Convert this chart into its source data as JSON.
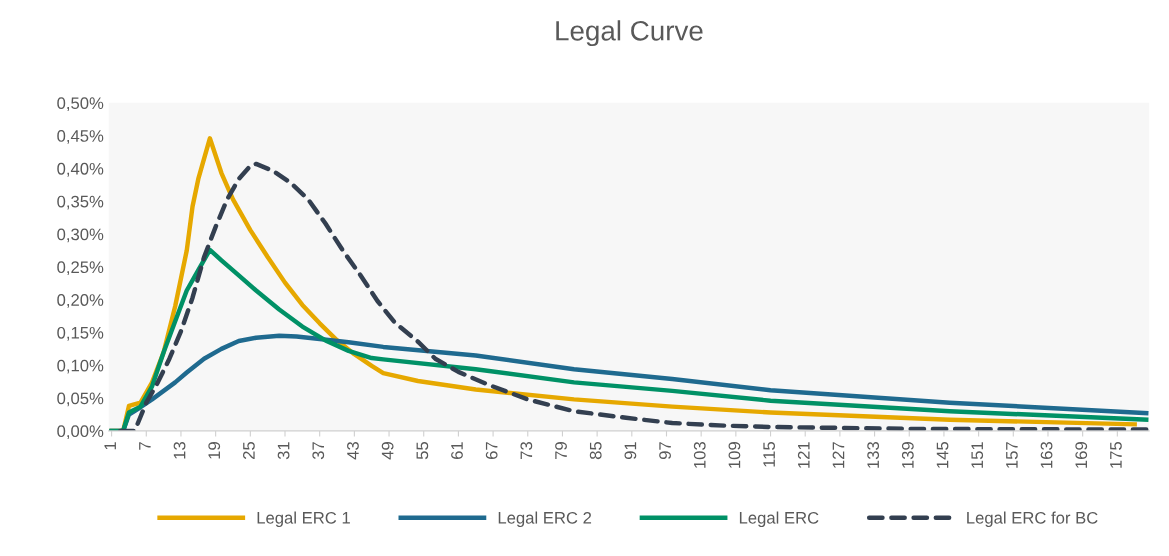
{
  "chart_data": {
    "type": "line",
    "title": "Legal Curve",
    "xlim": [
      0.5,
      180.5
    ],
    "xticks": [
      1,
      7,
      13,
      19,
      25,
      31,
      37,
      43,
      49,
      55,
      61,
      67,
      73,
      79,
      85,
      91,
      97,
      103,
      109,
      115,
      121,
      127,
      133,
      139,
      145,
      151,
      157,
      163,
      169,
      175
    ],
    "ylim": [
      0,
      0.5
    ],
    "yticks": [
      {
        "value": 0,
        "label": "0,00%"
      },
      {
        "value": 0.05,
        "label": "0,05%"
      },
      {
        "value": 0.1,
        "label": "0,10%"
      },
      {
        "value": 0.15,
        "label": "0,15%"
      },
      {
        "value": 0.2,
        "label": "0,20%"
      },
      {
        "value": 0.25,
        "label": "0,25%"
      },
      {
        "value": 0.3,
        "label": "0,30%"
      },
      {
        "value": 0.35,
        "label": "0,35%"
      },
      {
        "value": 0.4,
        "label": "0,40%"
      },
      {
        "value": 0.45,
        "label": "0,45%"
      },
      {
        "value": 0.5,
        "label": "0,50%"
      }
    ],
    "grid": false,
    "legend": "bottom",
    "marker": "none",
    "series": [
      {
        "name": "Legal ERC 1",
        "color": "#e6a800",
        "line_style": "solid",
        "x": [
          1,
          2,
          3,
          4,
          6,
          8,
          10,
          12,
          14,
          15,
          16,
          18,
          20,
          22,
          25,
          28,
          31,
          34,
          37,
          40,
          43,
          46,
          48,
          54,
          64,
          81,
          98,
          115,
          146,
          178
        ],
        "values": [
          0,
          0,
          0,
          0.038,
          0.043,
          0.074,
          0.12,
          0.19,
          0.275,
          0.342,
          0.384,
          0.446,
          0.393,
          0.353,
          0.306,
          0.265,
          0.226,
          0.192,
          0.164,
          0.138,
          0.117,
          0.099,
          0.088,
          0.076,
          0.063,
          0.048,
          0.037,
          0.028,
          0.017,
          0.01
        ]
      },
      {
        "name": "Legal ERC 2",
        "color": "#1f6a8f",
        "line_style": "solid",
        "x": [
          1,
          2,
          3,
          4,
          6,
          8,
          10,
          12,
          14,
          17,
          20,
          23,
          26,
          30,
          33,
          37,
          42,
          48,
          64,
          81,
          98,
          115,
          146,
          180
        ],
        "values": [
          0,
          0,
          0,
          0.025,
          0.036,
          0.048,
          0.061,
          0.074,
          0.089,
          0.11,
          0.125,
          0.137,
          0.142,
          0.145,
          0.144,
          0.14,
          0.135,
          0.128,
          0.115,
          0.094,
          0.079,
          0.062,
          0.043,
          0.027
        ]
      },
      {
        "name": "Legal ERC",
        "color": "#009166",
        "line_style": "solid",
        "x": [
          1,
          2,
          3,
          4,
          6,
          8,
          10,
          12,
          14,
          16,
          18,
          20,
          23,
          26,
          30,
          34,
          38,
          42,
          46,
          48,
          64,
          81,
          98,
          115,
          146,
          180
        ],
        "values": [
          0,
          0,
          0,
          0.028,
          0.037,
          0.068,
          0.12,
          0.167,
          0.214,
          0.245,
          0.276,
          0.26,
          0.237,
          0.214,
          0.185,
          0.159,
          0.138,
          0.122,
          0.111,
          0.109,
          0.094,
          0.074,
          0.061,
          0.046,
          0.03,
          0.017
        ]
      },
      {
        "name": "Legal ERC for BC",
        "color": "#333f50",
        "line_style": "dashed",
        "x": [
          1,
          3,
          5,
          7,
          9,
          11,
          13,
          15,
          17,
          19,
          21,
          23,
          25,
          26,
          29,
          32,
          35,
          38,
          41,
          44,
          47,
          50,
          54,
          57,
          61,
          66,
          73,
          81,
          90,
          98,
          107,
          115,
          140,
          180
        ],
        "values": [
          0,
          0,
          0,
          0.043,
          0.074,
          0.11,
          0.152,
          0.203,
          0.265,
          0.311,
          0.353,
          0.384,
          0.404,
          0.407,
          0.396,
          0.378,
          0.353,
          0.316,
          0.275,
          0.238,
          0.198,
          0.165,
          0.136,
          0.11,
          0.09,
          0.071,
          0.048,
          0.03,
          0.02,
          0.012,
          0.008,
          0.006,
          0.003,
          0.002
        ]
      }
    ]
  }
}
